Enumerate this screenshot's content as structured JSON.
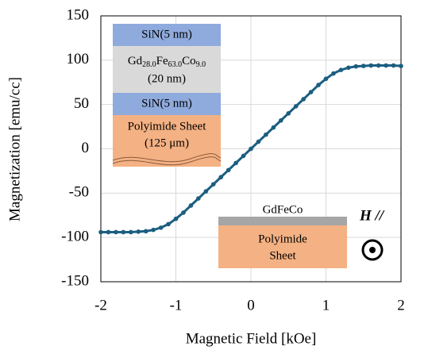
{
  "chart_data": {
    "type": "scatter",
    "xlabel": "Magnetic Field [kOe]",
    "ylabel": "Magnetization [emu/cc]",
    "x": [
      -2,
      -1.9,
      -1.8,
      -1.7,
      -1.6,
      -1.5,
      -1.4,
      -1.3,
      -1.2,
      -1.1,
      -1,
      -0.9,
      -0.8,
      -0.7,
      -0.6,
      -0.5,
      -0.4,
      -0.3,
      -0.2,
      -0.1,
      0,
      0.1,
      0.2,
      0.3,
      0.4,
      0.5,
      0.6,
      0.7,
      0.8,
      0.9,
      1,
      1.1,
      1.2,
      1.3,
      1.4,
      1.5,
      1.6,
      1.7,
      1.8,
      1.9,
      2
    ],
    "series": [
      {
        "color": "#1b5e80",
        "values": [
          -94,
          -94,
          -94,
          -94,
          -94,
          -93.5,
          -93,
          -91.5,
          -89,
          -85,
          -79,
          -72,
          -64,
          -56,
          -48,
          -40,
          -32,
          -24,
          -16,
          -8,
          0,
          8,
          16,
          24,
          32,
          40,
          48,
          56,
          64,
          72,
          79,
          85,
          89,
          91.5,
          93,
          93.5,
          94,
          94,
          94,
          94,
          93.5
        ]
      }
    ],
    "xlim": [
      -2,
      2
    ],
    "xticks": [
      -2,
      -1,
      0,
      1,
      2
    ],
    "ylim": [
      -150,
      150
    ],
    "yticks": [
      -150,
      -100,
      -50,
      0,
      50,
      100,
      150
    ],
    "grid": true
  },
  "insets": {
    "stack": {
      "top": "SiN(5 nm)",
      "alloy": [
        "Gd",
        "28.0",
        "Fe",
        "63.0",
        "Co",
        "9.0"
      ],
      "alloy_thickness": "(20 nm)",
      "bottom": "SiN(5 nm)",
      "substrate": "Polyimide Sheet",
      "substrate_thickness": "(125 μm)"
    },
    "geometry": {
      "film": "GdFeCo",
      "substrate": [
        "Polyimide",
        "Sheet"
      ],
      "field": "H //"
    }
  }
}
